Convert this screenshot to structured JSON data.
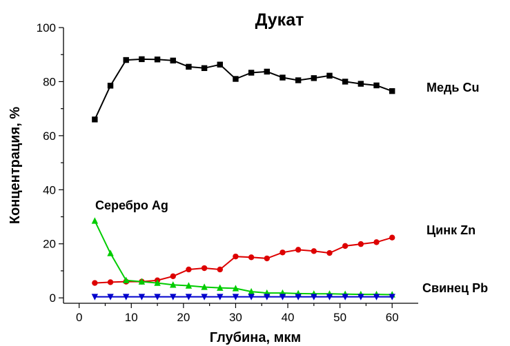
{
  "chart_data": {
    "type": "line",
    "title": "Дукат",
    "xlabel": "Глубина, мкм",
    "ylabel": "Концентрация, %",
    "xlim": [
      -3,
      65
    ],
    "ylim": [
      -2,
      100
    ],
    "xticks": [
      0,
      10,
      20,
      30,
      40,
      50,
      60
    ],
    "yticks": [
      0,
      20,
      40,
      60,
      80,
      100
    ],
    "grid": false,
    "legend": "none",
    "series": [
      {
        "name": "Медь Cu",
        "color": "#000000",
        "marker": "square",
        "x": [
          3,
          6,
          9,
          12,
          15,
          18,
          21,
          24,
          27,
          30,
          33,
          36,
          39,
          42,
          45,
          48,
          51,
          54,
          57,
          60
        ],
        "y": [
          66,
          78.5,
          88,
          88.3,
          88.2,
          87.8,
          85.5,
          85,
          86.3,
          81,
          83.3,
          83.7,
          81.5,
          80.5,
          81.3,
          82.2,
          80,
          79.2,
          78.6,
          76.5
        ]
      },
      {
        "name": "Цинк Zn",
        "color": "#dd0000",
        "marker": "circle",
        "x": [
          3,
          6,
          9,
          12,
          15,
          18,
          21,
          24,
          27,
          30,
          33,
          36,
          39,
          42,
          45,
          48,
          51,
          54,
          57,
          60
        ],
        "y": [
          5.5,
          5.8,
          6,
          6,
          6.5,
          8,
          10.5,
          11,
          10.5,
          15.3,
          15,
          14.6,
          16.8,
          17.8,
          17.3,
          16.6,
          19.2,
          19.9,
          20.6,
          22.3
        ]
      },
      {
        "name": "Серебро Ag",
        "color": "#00cc00",
        "marker": "triangle-up",
        "x": [
          3,
          6,
          9,
          12,
          15,
          18,
          21,
          24,
          27,
          30,
          33,
          36,
          39,
          42,
          45,
          48,
          51,
          54,
          57,
          60
        ],
        "y": [
          28.5,
          16.5,
          6.5,
          6,
          5.5,
          4.8,
          4.5,
          4,
          3.7,
          3.5,
          2.3,
          1.8,
          1.8,
          1.6,
          1.5,
          1.5,
          1.4,
          1.3,
          1.3,
          1.2
        ]
      },
      {
        "name": "Свинец Pb",
        "color": "#0000cc",
        "marker": "triangle-down",
        "x": [
          3,
          6,
          9,
          12,
          15,
          18,
          21,
          24,
          27,
          30,
          33,
          36,
          39,
          42,
          45,
          48,
          51,
          54,
          57,
          60
        ],
        "y": [
          0.4,
          0.4,
          0.4,
          0.4,
          0.4,
          0.4,
          0.4,
          0.4,
          0.4,
          0.4,
          0.4,
          0.4,
          0.4,
          0.4,
          0.4,
          0.4,
          0.4,
          0.4,
          0.4,
          0.4
        ]
      }
    ]
  }
}
